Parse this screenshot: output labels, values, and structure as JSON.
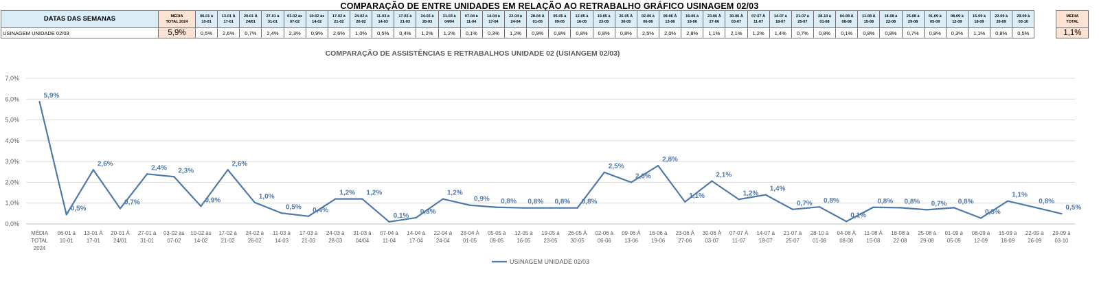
{
  "page_title": "COMPARAÇÃO DE ENTRE UNIDADES EM RELAÇÃO AO RETRABALHO GRÁFICO USINAGEM 02/03",
  "table": {
    "header_label": "DATAS DAS SEMANAS",
    "row_label": "USINAGEM UNIDADE 02/03",
    "media_2024_label": [
      "MÉDIA",
      "TOTAL 2024"
    ],
    "media_2024_value": "5,9%",
    "media_total_label": [
      "MÉDIA",
      "TOTAL"
    ],
    "media_total_value": "1,1%",
    "weeks": [
      {
        "top": "06-01 à",
        "bottom": "10-01",
        "value": "0,5%"
      },
      {
        "top": "13-01 À",
        "bottom": "17-01",
        "value": "2,6%"
      },
      {
        "top": "20-01 À",
        "bottom": "24/01",
        "value": "0,7%"
      },
      {
        "top": "27-01 à",
        "bottom": "31-01",
        "value": "2,4%"
      },
      {
        "top": "03-02 às",
        "bottom": "07-02",
        "value": "2,3%"
      },
      {
        "top": "10-02 às",
        "bottom": "14-02",
        "value": "0,9%"
      },
      {
        "top": "17-02 à",
        "bottom": "21-02",
        "value": "2,6%"
      },
      {
        "top": "24-02 à",
        "bottom": "26-02",
        "value": "1,0%"
      },
      {
        "top": "11-03 à",
        "bottom": "14-03",
        "value": "0,5%"
      },
      {
        "top": "17-03 à",
        "bottom": "21-03",
        "value": "0,4%"
      },
      {
        "top": "24-03 à",
        "bottom": "28-03",
        "value": "1,2%"
      },
      {
        "top": "31-03 à",
        "bottom": "04/04",
        "value": "1,2%"
      },
      {
        "top": "07-04 à",
        "bottom": "11-04",
        "value": "0,1%"
      },
      {
        "top": "14-04 à",
        "bottom": "17-04",
        "value": "0,3%"
      },
      {
        "top": "22-04 à",
        "bottom": "24-04",
        "value": "1,2%"
      },
      {
        "top": "28-04 À",
        "bottom": "01-05",
        "value": "0,9%"
      },
      {
        "top": "05-05 à",
        "bottom": "09-05",
        "value": "0,8%"
      },
      {
        "top": "12-05 à",
        "bottom": "16-05",
        "value": "0,8%"
      },
      {
        "top": "19-05 à",
        "bottom": "23-05",
        "value": "0,8%"
      },
      {
        "top": "26-05 À",
        "bottom": "30-05",
        "value": "0,8%"
      },
      {
        "top": "02-06 à",
        "bottom": "06-06",
        "value": "2,5%"
      },
      {
        "top": "09-06 À",
        "bottom": "13-06",
        "value": "2,0%"
      },
      {
        "top": "16-06 à",
        "bottom": "19-06",
        "value": "2,8%"
      },
      {
        "top": "23-06 À",
        "bottom": "27-06",
        "value": "1,1%"
      },
      {
        "top": "30-06 À",
        "bottom": "03-07",
        "value": "2,1%"
      },
      {
        "top": "07-07 À",
        "bottom": "11-07",
        "value": "1,2%"
      },
      {
        "top": "14-07 à",
        "bottom": "18-07",
        "value": "1,4%"
      },
      {
        "top": "21-07 à",
        "bottom": "25-07",
        "value": "0,7%"
      },
      {
        "top": "28-10 à",
        "bottom": "01-08",
        "value": "0,8%"
      },
      {
        "top": "04-08 À",
        "bottom": "08-08",
        "value": "0,1%"
      },
      {
        "top": "11-08 À",
        "bottom": "15-08",
        "value": "0,8%"
      },
      {
        "top": "18-08 à",
        "bottom": "22-08",
        "value": "0,8%"
      },
      {
        "top": "25-08 à",
        "bottom": "29-08",
        "value": "0,7%"
      },
      {
        "top": "01-09 à",
        "bottom": "05-09",
        "value": "0,8%"
      },
      {
        "top": "08-09 à",
        "bottom": "12-09",
        "value": "0,3%"
      },
      {
        "top": "15-09 à",
        "bottom": "18-09",
        "value": "1,1%"
      },
      {
        "top": "22-09 à",
        "bottom": "26-09",
        "value": "0,8%"
      },
      {
        "top": "29-09 à",
        "bottom": "03-10",
        "value": "0,5%"
      }
    ]
  },
  "chart_data": {
    "type": "line",
    "title": "COMPARAÇÃO DE ASSISTÊNCIAS E RETRABALHOS UNIDADE 02  (USIANGEM 02/03)",
    "xlabel": "",
    "ylabel": "",
    "ylim": [
      0,
      7
    ],
    "ytick_labels": [
      "0,0%",
      "1,0%",
      "2,0%",
      "3,0%",
      "4,0%",
      "5,0%",
      "6,0%",
      "7,0%"
    ],
    "categories": [
      [
        "MÉDIA",
        "TOTAL",
        "2024"
      ],
      [
        "06-01 à",
        "10-01"
      ],
      [
        "13-01 À",
        "17-01"
      ],
      [
        "20-01 À",
        "24/01"
      ],
      [
        "27-01 à",
        "31-01"
      ],
      [
        "03-02 às",
        "07-02"
      ],
      [
        "10-02 às",
        "14-02"
      ],
      [
        "17-02 à",
        "21-02"
      ],
      [
        "24-02 à",
        "26-02"
      ],
      [
        "11-03 à",
        "14-03"
      ],
      [
        "17-03 à",
        "21-03"
      ],
      [
        "24-03 à",
        "28-03"
      ],
      [
        "31-03 à",
        "04/04"
      ],
      [
        "07-04 à",
        "11-04"
      ],
      [
        "14-04 à",
        "17-04"
      ],
      [
        "22-04 à",
        "24-04"
      ],
      [
        "28-04 À",
        "01-05"
      ],
      [
        "05-05 à",
        "09-05"
      ],
      [
        "12-05 à",
        "16-05"
      ],
      [
        "19-05 à",
        "23-05"
      ],
      [
        "26-05 À",
        "30-05"
      ],
      [
        "02-06 à",
        "06-06"
      ],
      [
        "09-06 À",
        "13-06"
      ],
      [
        "16-06 à",
        "19-06"
      ],
      [
        "23-06 À",
        "27-06"
      ],
      [
        "30-06 À",
        "03-07"
      ],
      [
        "07-07 À",
        "11-07"
      ],
      [
        "14-07 à",
        "18-07"
      ],
      [
        "21-07 à",
        "25-07"
      ],
      [
        "28-10 à",
        "01-08"
      ],
      [
        "04-08 À",
        "08-08"
      ],
      [
        "11-08 À",
        "15-08"
      ],
      [
        "18-08 à",
        "22-08"
      ],
      [
        "25-08 à",
        "29-08"
      ],
      [
        "01-09 à",
        "05-09"
      ],
      [
        "08-09 à",
        "12-09"
      ],
      [
        "15-09 à",
        "18-09"
      ],
      [
        "22-09 à",
        "26-09"
      ],
      [
        "29-09 à",
        "03-10"
      ]
    ],
    "series": [
      {
        "name": "USINAGEM UNIDADE 02/03",
        "color": "#4f79a8",
        "values": [
          5.87,
          0.45,
          2.6,
          0.74,
          2.4,
          2.27,
          0.85,
          2.6,
          1.03,
          0.52,
          0.37,
          1.2,
          1.2,
          0.1,
          0.3,
          1.2,
          0.9,
          0.8,
          0.77,
          0.77,
          0.77,
          2.48,
          2.0,
          2.8,
          1.06,
          2.06,
          1.18,
          1.4,
          0.7,
          0.82,
          0.12,
          0.8,
          0.78,
          0.68,
          0.78,
          0.28,
          1.1,
          0.8,
          0.49
        ],
        "data_labels": [
          "5,9%",
          "0,5%",
          "2,6%",
          "0,7%",
          "2,4%",
          "2,3%",
          "0,9%",
          "2,6%",
          "1,0%",
          "0,5%",
          "0,4%",
          "1,2%",
          "1,2%",
          "0,1%",
          "0,3%",
          "1,2%",
          "0,9%",
          "0,8%",
          "0,8%",
          "0,8%",
          "0,8%",
          "2,5%",
          "2,0%",
          "2,8%",
          "1,1%",
          "2,1%",
          "1,2%",
          "1,4%",
          "0,7%",
          "0,8%",
          "0,1%",
          "0,8%",
          "0,8%",
          "0,7%",
          "0,8%",
          "0,3%",
          "1,1%",
          "0,8%",
          "0,5%"
        ]
      }
    ],
    "grid": true,
    "legend": "bottom-center"
  }
}
